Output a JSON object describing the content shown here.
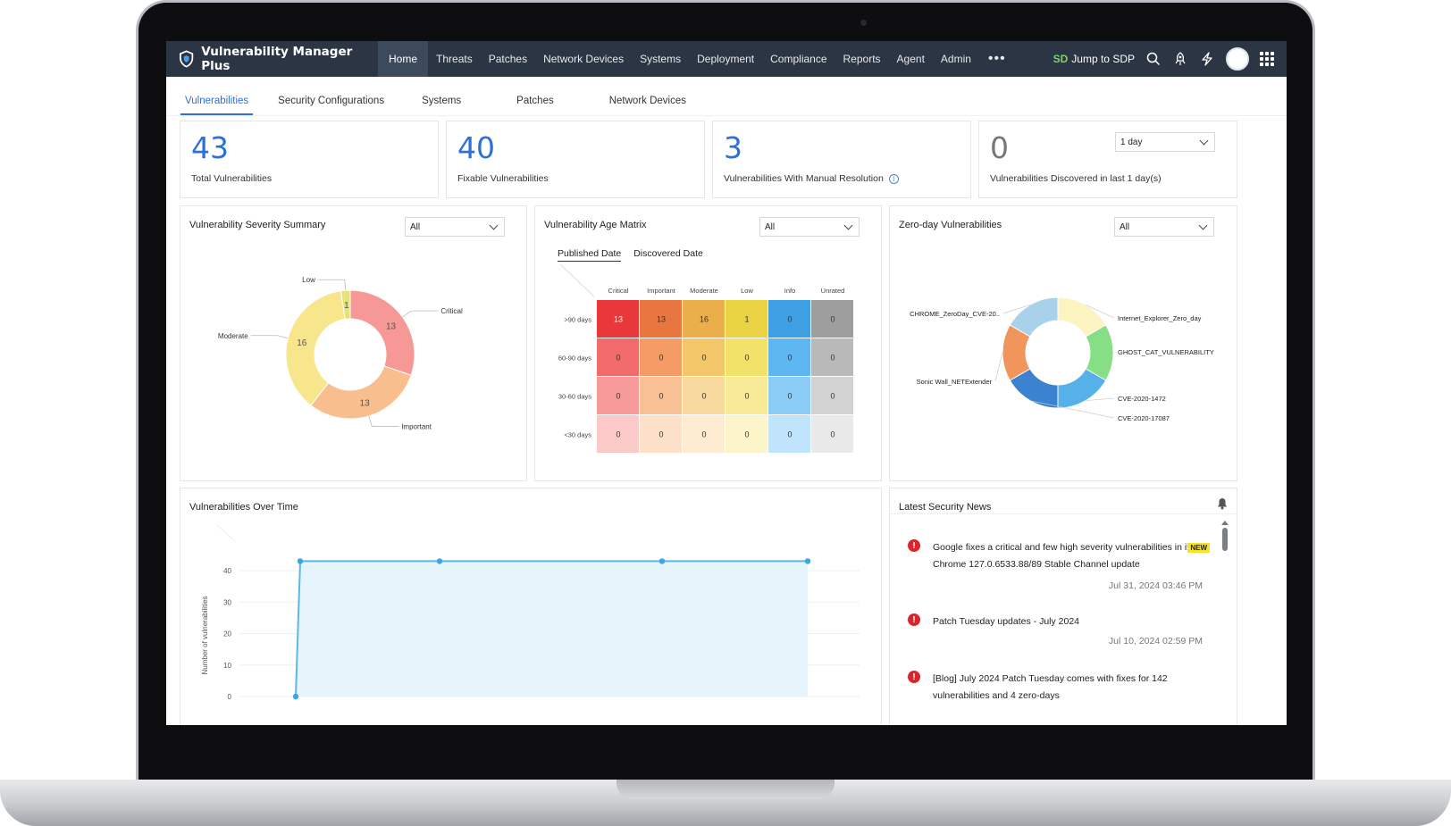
{
  "app": {
    "title": "Vulnerability Manager Plus",
    "nav": [
      "Home",
      "Threats",
      "Patches",
      "Network Devices",
      "Systems",
      "Deployment",
      "Compliance",
      "Reports",
      "Agent",
      "Admin"
    ],
    "more": "•••",
    "jump_logo": "SD",
    "jump_label": "Jump to SDP"
  },
  "subtabs": [
    "Vulnerabilities",
    "Security Configurations",
    "Systems",
    "Patches",
    "Network Devices"
  ],
  "stats": [
    {
      "value": "43",
      "label": "Total Vulnerabilities"
    },
    {
      "value": "40",
      "label": "Fixable Vulnerabilities"
    },
    {
      "value": "3",
      "label": "Vulnerabilities With Manual Resolution"
    },
    {
      "value": "0",
      "label": "Vulnerabilities Discovered in last 1 day(s)",
      "select": "1 day"
    }
  ],
  "severity": {
    "title": "Vulnerability Severity Summary",
    "filter": "All",
    "colors": [
      "#f69896",
      "#f9be8e",
      "#f7e68b",
      "#e6e27a"
    ]
  },
  "age_matrix": {
    "title": "Vulnerability Age Matrix",
    "filter": "All",
    "tab_published": "Published Date",
    "tab_discovered": "Discovered Date",
    "columns": [
      "Critical",
      "Important",
      "Moderate",
      "Low",
      "Info",
      "Unrated"
    ],
    "rows": [
      ">90 days",
      "60-90 days",
      "30-60 days",
      "<30 days"
    ],
    "values": [
      [
        "13",
        "13",
        "16",
        "1",
        "0",
        "0"
      ],
      [
        "0",
        "0",
        "0",
        "0",
        "0",
        "0"
      ],
      [
        "0",
        "0",
        "0",
        "0",
        "0",
        "0"
      ],
      [
        "0",
        "0",
        "0",
        "0",
        "0",
        "0"
      ]
    ],
    "colors": [
      [
        "#e8383b",
        "#e8773f",
        "#eaae4a",
        "#ead343",
        "#3f9fe4",
        "#9e9e9e"
      ],
      [
        "#f06b6a",
        "#f59c66",
        "#f3c66a",
        "#f3e26a",
        "#5fb7f2",
        "#b9b9b9"
      ],
      [
        "#f69b99",
        "#f9bf95",
        "#f8d99d",
        "#f7eb98",
        "#8ccdf8",
        "#d2d2d2"
      ],
      [
        "#fbc9c7",
        "#fde0c8",
        "#fdecd1",
        "#fcf5c9",
        "#bfe4fc",
        "#e9e9e9"
      ]
    ]
  },
  "zero_day": {
    "title": "Zero-day Vulnerabilities",
    "filter": "All",
    "colors": [
      "#a9d1ea",
      "#fbf3c0",
      "#86de85",
      "#56b1e8",
      "#3b82d0",
      "#f0965c"
    ]
  },
  "chart_data": [
    {
      "type": "pie",
      "title": "Vulnerability Severity Summary",
      "labels": [
        "Critical",
        "Important",
        "Moderate",
        "Low"
      ],
      "values": [
        13,
        13,
        16,
        1
      ]
    },
    {
      "type": "table",
      "title": "Vulnerability Age Matrix",
      "columns": [
        "Critical",
        "Important",
        "Moderate",
        "Low",
        "Info",
        "Unrated"
      ],
      "rows": [
        ">90 days",
        "60-90 days",
        "30-60 days",
        "<30 days"
      ],
      "values": [
        [
          13,
          13,
          16,
          1,
          0,
          0
        ],
        [
          0,
          0,
          0,
          0,
          0,
          0
        ],
        [
          0,
          0,
          0,
          0,
          0,
          0
        ],
        [
          0,
          0,
          0,
          0,
          0,
          0
        ]
      ]
    },
    {
      "type": "pie",
      "title": "Zero-day Vulnerabilities",
      "labels": [
        "CHROME_ZeroDay_CVE-20..",
        "Internet_Explorer_Zero_day",
        "GHOST_CAT_VULNERABILITY",
        "CVE-2020-1472",
        "CVE-2020-17087",
        "Sonic Wall_NETExtender"
      ],
      "values": [
        1,
        1,
        1,
        1,
        1,
        1
      ]
    },
    {
      "type": "area",
      "title": "Vulnerabilities Over Time",
      "ylabel": "Number of vulnerabilities",
      "yticks": [
        "0",
        "10",
        "20",
        "30",
        "40"
      ],
      "ylim": [
        0,
        40
      ],
      "values": [
        0,
        43,
        43,
        43,
        43
      ]
    }
  ],
  "over_time": {
    "title": "Vulnerabilities Over Time",
    "color": "#5bb7ea"
  },
  "news": {
    "title": "Latest Security News",
    "new_label": "NEW",
    "items": [
      {
        "text": "Google fixes a critical and few high severity vulnerabilities in its Chrome 127.0.6533.88/89 Stable Channel update",
        "date": "Jul 31, 2024 03:46 PM"
      },
      {
        "text": "Patch Tuesday updates - July 2024",
        "date": "Jul 10, 2024 02:59 PM"
      },
      {
        "text": "[Blog] July 2024 Patch Tuesday comes with fixes for 142 vulnerabilities and 4 zero-days",
        "date": ""
      }
    ]
  }
}
